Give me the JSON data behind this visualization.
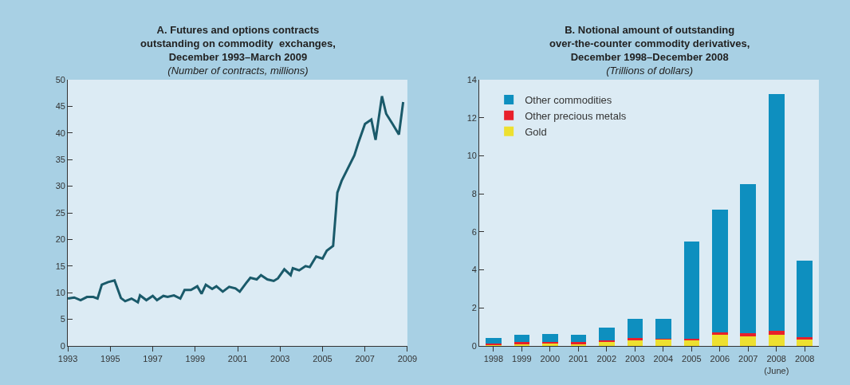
{
  "chart_data": [
    {
      "type": "line",
      "title": "A. Futures and options contracts\noutstanding on commodity  exchanges,\nDecember 1993–March 2009",
      "subtitle": "(Number of contracts, millions)",
      "x": [
        1993.0,
        1993.3,
        1993.6,
        1993.9,
        1994.2,
        1994.4,
        1994.6,
        1994.9,
        1995.2,
        1995.5,
        1995.7,
        1996.0,
        1996.3,
        1996.4,
        1996.7,
        1997.0,
        1997.2,
        1997.5,
        1997.7,
        1998.0,
        1998.3,
        1998.5,
        1998.8,
        1999.1,
        1999.3,
        1999.5,
        1999.8,
        2000.0,
        2000.3,
        2000.6,
        2000.9,
        2001.1,
        2001.4,
        2001.6,
        2001.9,
        2002.1,
        2002.4,
        2002.7,
        2002.9,
        2003.2,
        2003.5,
        2003.6,
        2003.9,
        2004.2,
        2004.4,
        2004.7,
        2005.0,
        2005.2,
        2005.5,
        2005.7,
        2005.9,
        2006.2,
        2006.5,
        2006.7,
        2007.0,
        2007.3,
        2007.5,
        2007.8,
        2008.0,
        2008.3,
        2008.6,
        2008.8
      ],
      "series": [
        {
          "color": "#1a5a6a",
          "values": [
            8.9,
            9.1,
            8.6,
            9.2,
            9.2,
            8.9,
            11.5,
            12.0,
            12.3,
            9.0,
            8.4,
            8.9,
            8.2,
            9.5,
            8.6,
            9.4,
            8.6,
            9.4,
            9.2,
            9.5,
            8.9,
            10.5,
            10.5,
            11.2,
            9.8,
            11.5,
            10.7,
            11.2,
            10.2,
            11.1,
            10.8,
            10.2,
            11.8,
            12.8,
            12.5,
            13.3,
            12.5,
            12.2,
            12.7,
            14.4,
            13.3,
            14.6,
            14.2,
            15.0,
            14.8,
            16.8,
            16.4,
            17.9,
            18.8,
            28.8,
            31.0,
            33.4,
            35.8,
            38.3,
            41.7,
            42.5,
            38.7,
            46.9,
            43.6,
            41.7,
            39.7,
            45.8
          ]
        }
      ],
      "xlim": [
        1993,
        2009
      ],
      "xticks": [
        1993,
        1995,
        1997,
        1999,
        2001,
        2003,
        2005,
        2007,
        2009
      ],
      "ylim": [
        0,
        50
      ],
      "yticks": [
        0,
        5,
        10,
        15,
        20,
        25,
        30,
        35,
        40,
        45,
        50
      ],
      "grid": false,
      "legend": false,
      "marker": "none",
      "line_style": "solid"
    },
    {
      "type": "bar",
      "title": "B. Notional amount of outstanding\nover-the-counter commodity derivatives,\nDecember 1998–December 2008",
      "subtitle": "(Trillions of dollars)",
      "categories": [
        "1998",
        "1999",
        "2000",
        "2001",
        "2002",
        "2003",
        "2004",
        "2005",
        "2006",
        "2007",
        "2008\n(June)",
        "2008"
      ],
      "stacked": true,
      "series": [
        {
          "name": "Gold",
          "color": "#ede030",
          "values": [
            0.05,
            0.12,
            0.12,
            0.12,
            0.25,
            0.32,
            0.34,
            0.32,
            0.58,
            0.52,
            0.58,
            0.35
          ]
        },
        {
          "name": "Other precious metals",
          "color": "#e8202a",
          "values": [
            0.08,
            0.08,
            0.09,
            0.08,
            0.05,
            0.08,
            0.03,
            0.05,
            0.12,
            0.15,
            0.22,
            0.1
          ]
        },
        {
          "name": "Other commodities",
          "color": "#0e8fbf",
          "values": [
            0.3,
            0.39,
            0.42,
            0.37,
            0.65,
            1.04,
            1.07,
            5.12,
            6.45,
            7.84,
            12.43,
            4.02
          ]
        }
      ],
      "ylim": [
        0,
        14
      ],
      "yticks": [
        0,
        2,
        4,
        6,
        8,
        10,
        12,
        14
      ],
      "grid": false,
      "legend": "top left"
    }
  ]
}
